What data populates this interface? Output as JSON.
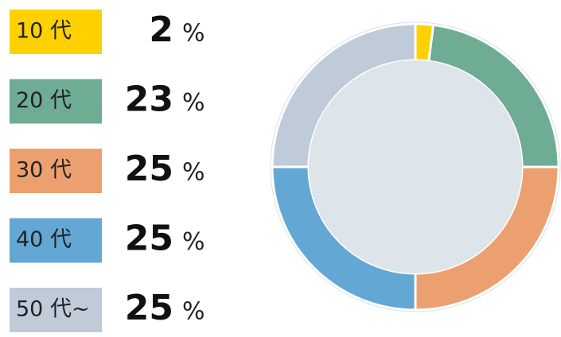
{
  "chart_data": {
    "type": "donut",
    "categories": [
      "10 代",
      "20 代",
      "30 代",
      "40 代",
      "50 代~"
    ],
    "values": [
      2,
      23,
      25,
      25,
      25
    ],
    "colors": [
      "#FFD100",
      "#6FAC94",
      "#EDA06F",
      "#63A8D4",
      "#BFCBD8"
    ],
    "unit": "%"
  }
}
